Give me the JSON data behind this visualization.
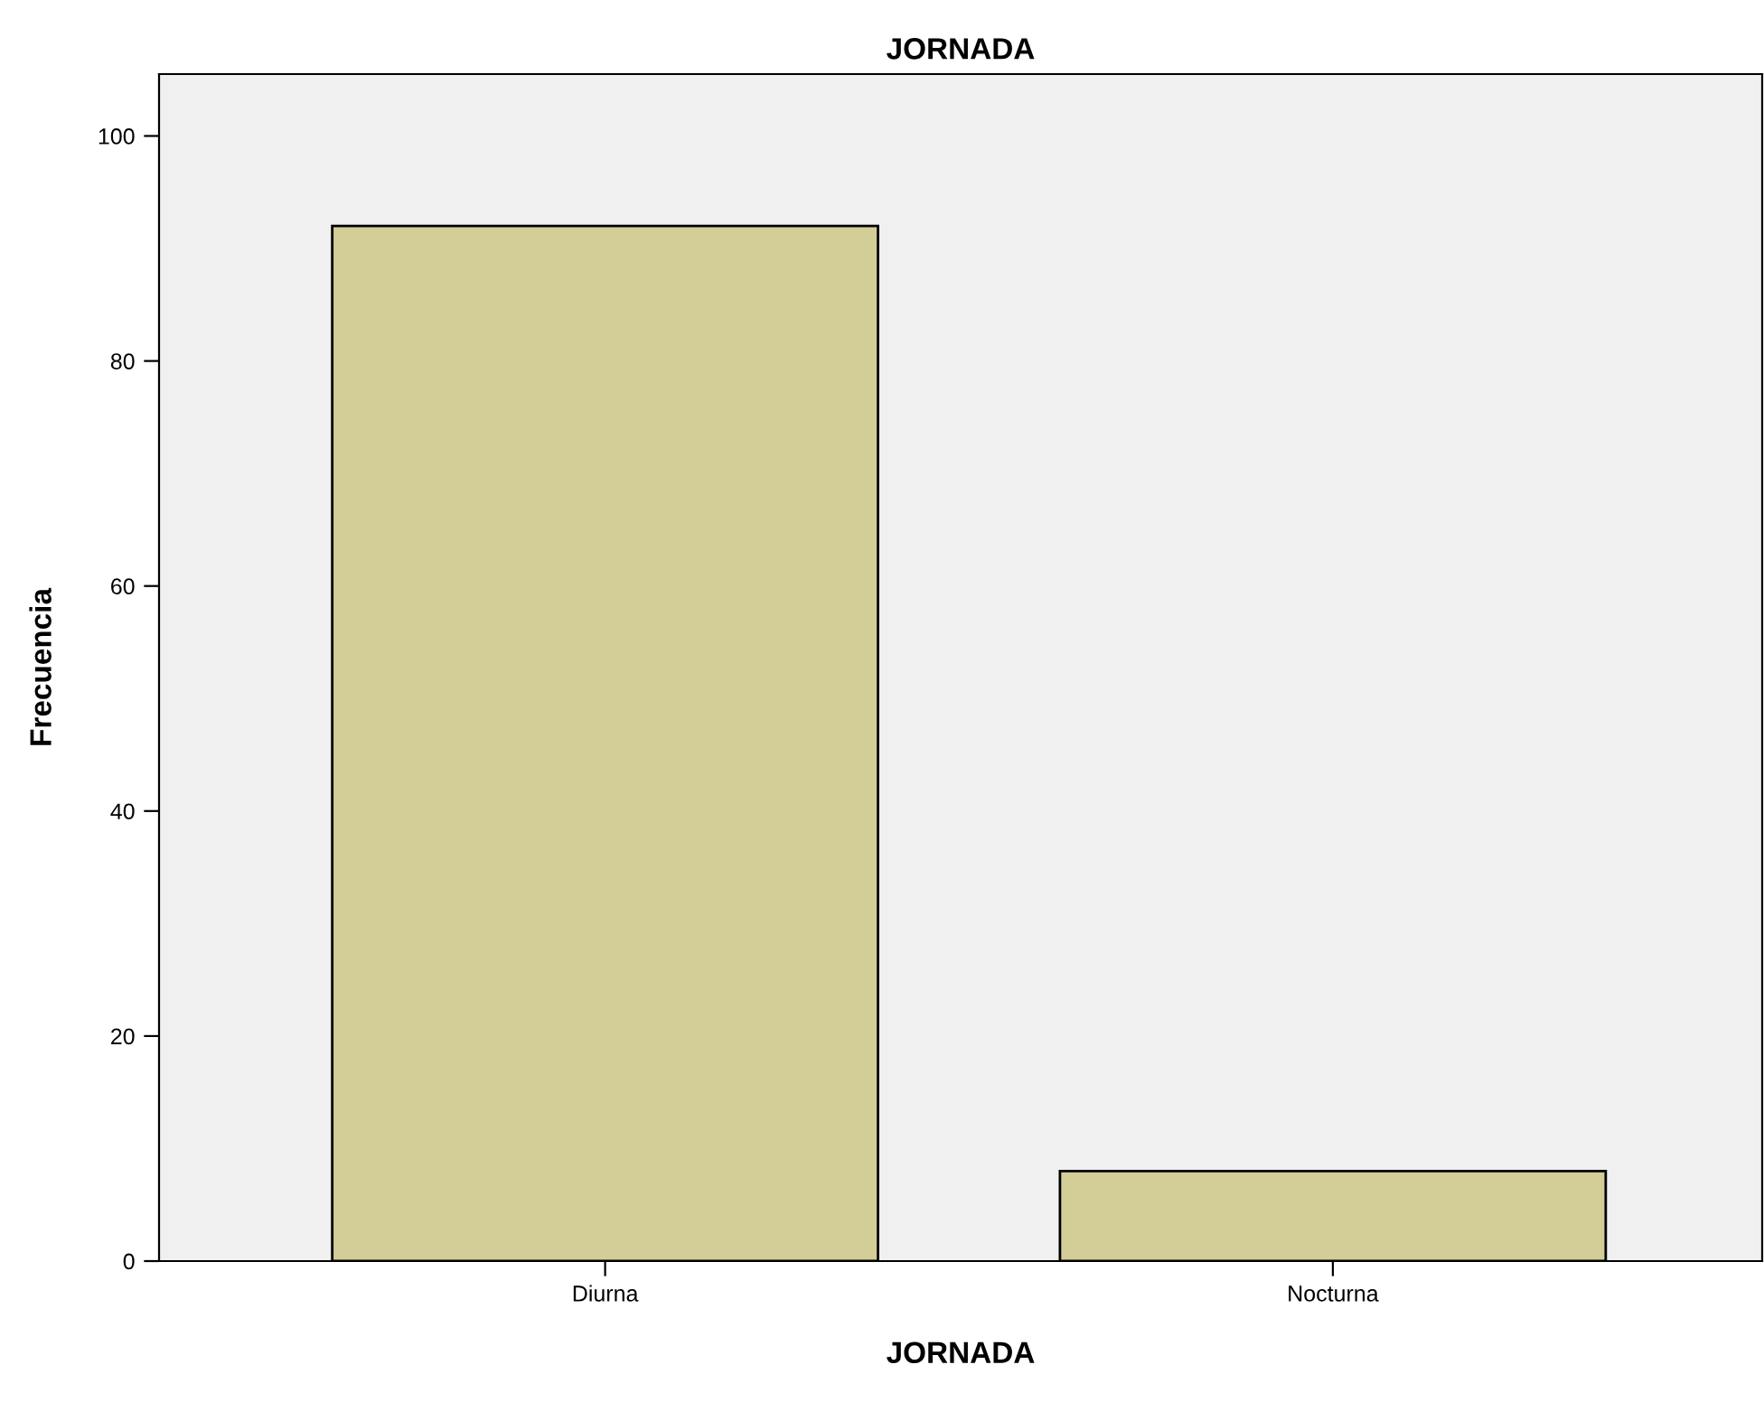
{
  "chart_data": {
    "type": "bar",
    "title": "JORNADA",
    "xlabel": "JORNADA",
    "ylabel": "Frecuencia",
    "categories": [
      "Diurna",
      "Nocturna"
    ],
    "values": [
      92,
      8
    ],
    "color": "#d3cd98",
    "ylim": [
      0,
      105.5
    ],
    "yticks": [
      0,
      20,
      40,
      60,
      80,
      100
    ],
    "grid": false
  }
}
